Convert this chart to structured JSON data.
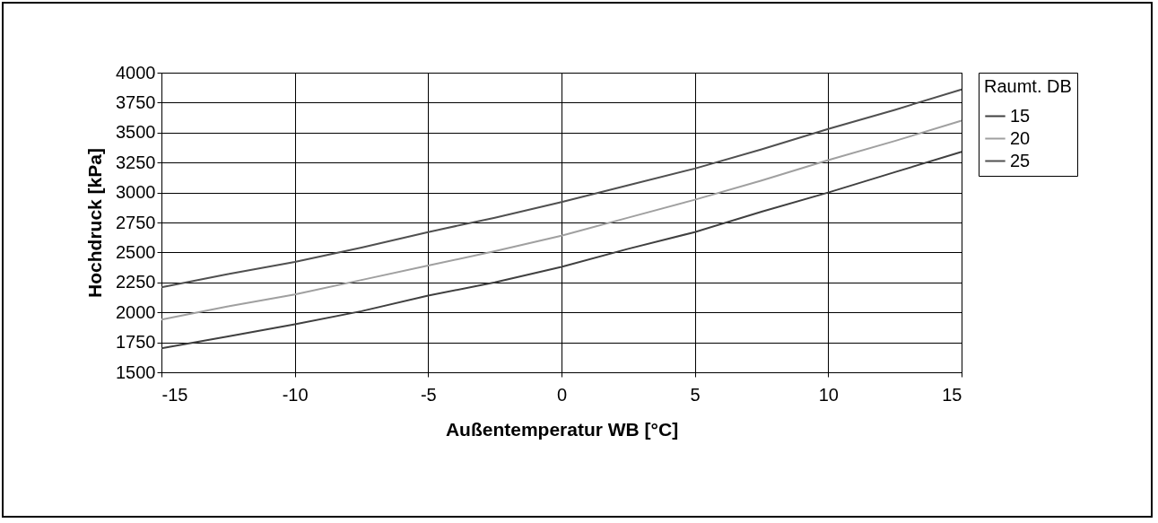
{
  "chart_data": {
    "type": "line",
    "xlabel": "Außentemperatur WB [°C]",
    "ylabel": "Hochdruck [kPa]",
    "legend_title": "Raumt. DB",
    "x": [
      -15,
      -12.5,
      -10,
      -7.5,
      -5,
      -2.5,
      0,
      2.5,
      5,
      7.5,
      10,
      12.5,
      15
    ],
    "series": [
      {
        "name": "15",
        "color": "#404040",
        "values": [
          1700,
          1800,
          1900,
          2010,
          2140,
          2250,
          2380,
          2530,
          2670,
          2840,
          3000,
          3170,
          3340
        ]
      },
      {
        "name": "20",
        "color": "#a0a0a0",
        "values": [
          1940,
          2050,
          2150,
          2270,
          2390,
          2510,
          2640,
          2790,
          2940,
          3100,
          3270,
          3430,
          3600
        ]
      },
      {
        "name": "25",
        "color": "#505050",
        "values": [
          2210,
          2320,
          2420,
          2540,
          2670,
          2790,
          2920,
          3060,
          3200,
          3360,
          3530,
          3690,
          3860
        ]
      }
    ],
    "xlim": [
      -15,
      15
    ],
    "xticks": [
      -15,
      -10,
      -5,
      0,
      5,
      10,
      15
    ],
    "ylim": [
      1500,
      4000
    ],
    "yticks": [
      1500,
      1750,
      2000,
      2250,
      2500,
      2750,
      3000,
      3250,
      3500,
      3750,
      4000
    ],
    "grid": true,
    "legend": "right"
  }
}
